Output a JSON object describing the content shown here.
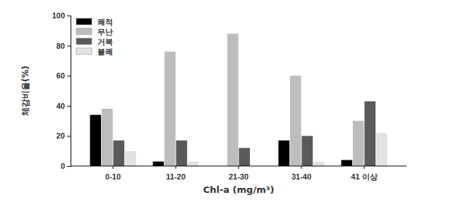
{
  "chart_data": {
    "type": "bar",
    "x_label": "Chl-a (mg/m³)",
    "y_label": "체감비율(%)",
    "categories": [
      "0-10",
      "11-20",
      "21-30",
      "31-40",
      "41 이상"
    ],
    "series": [
      {
        "name": "쾌적",
        "color": "#000000",
        "values": [
          34,
          3,
          0,
          17,
          4
        ]
      },
      {
        "name": "무난",
        "color": "#bdbdbd",
        "values": [
          38,
          76,
          88,
          60,
          30
        ]
      },
      {
        "name": "거북",
        "color": "#5a5a5a",
        "values": [
          17,
          17,
          12,
          20,
          43
        ]
      },
      {
        "name": "불쾌",
        "color": "#e2e2e2",
        "values": [
          10,
          3,
          0,
          3,
          22
        ]
      }
    ],
    "ylim": [
      0,
      100
    ],
    "yticks": [
      0,
      20,
      40,
      60,
      80,
      100
    ],
    "legend": "upper-left",
    "grid": false
  }
}
